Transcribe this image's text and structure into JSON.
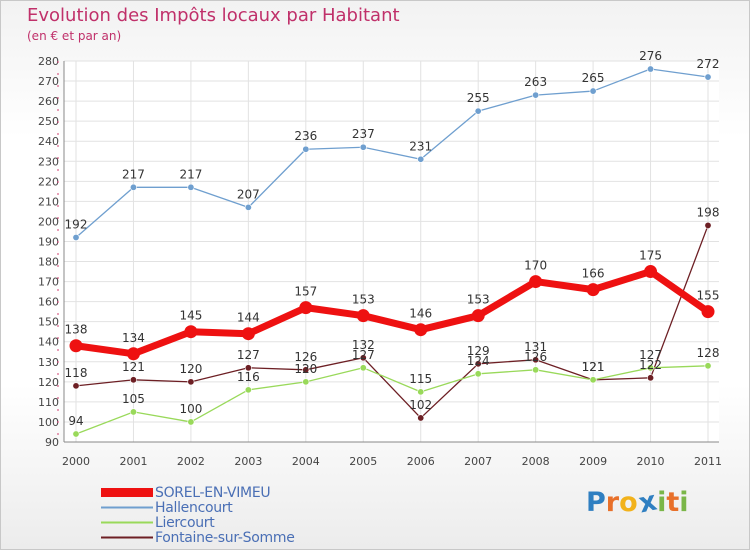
{
  "header": {
    "title": "Evolution des Impôts locaux par Habitant",
    "subtitle": "(en € et par an)"
  },
  "logo": {
    "letters": [
      "P",
      "r",
      "o",
      "x",
      "i",
      "t",
      "i"
    ],
    "colors": [
      "#2f7fc1",
      "#e8702a",
      "#f2b21b",
      "#2f7fc1",
      "#7ab648",
      "#e8702a",
      "#7ab648"
    ]
  },
  "chart_data": {
    "type": "line",
    "title": "Evolution des Impôts locaux par Habitant",
    "subtitle": "(en € et par an)",
    "xlabel": "",
    "ylabel": "",
    "x": [
      2000,
      2001,
      2002,
      2003,
      2004,
      2005,
      2006,
      2007,
      2008,
      2009,
      2010,
      2011
    ],
    "ylim": [
      90,
      280
    ],
    "yticks": [
      90,
      100,
      110,
      120,
      130,
      140,
      150,
      160,
      170,
      180,
      190,
      200,
      210,
      220,
      230,
      240,
      250,
      260,
      270,
      280
    ],
    "grid": true,
    "legend": "bottom-left",
    "series": [
      {
        "name": "SOREL-EN-VIMEU",
        "color": "#ee1111",
        "values": [
          138,
          134,
          145,
          144,
          157,
          153,
          146,
          153,
          170,
          166,
          175,
          155
        ]
      },
      {
        "name": "Hallencourt",
        "color": "#6f9fcf",
        "values": [
          192,
          217,
          217,
          207,
          236,
          237,
          231,
          255,
          263,
          265,
          276,
          272
        ]
      },
      {
        "name": "Liercourt",
        "color": "#99d95a",
        "values": [
          94,
          105,
          100,
          116,
          120,
          127,
          115,
          124,
          126,
          121,
          127,
          128
        ]
      },
      {
        "name": "Fontaine-sur-Somme",
        "color": "#6d1f24",
        "values": [
          118,
          121,
          120,
          127,
          126,
          132,
          102,
          129,
          131,
          121,
          122,
          198
        ]
      }
    ]
  }
}
